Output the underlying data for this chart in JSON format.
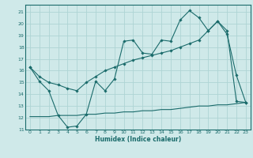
{
  "bg_color": "#cfe9e9",
  "grid_color": "#aed4d4",
  "line_color": "#1a6b6b",
  "xlabel": "Humidex (Indice chaleur)",
  "xlim": [
    -0.5,
    23.5
  ],
  "ylim": [
    11,
    21.6
  ],
  "yticks": [
    11,
    12,
    13,
    14,
    15,
    16,
    17,
    18,
    19,
    20,
    21
  ],
  "xticks": [
    0,
    1,
    2,
    3,
    4,
    5,
    6,
    7,
    8,
    9,
    10,
    11,
    12,
    13,
    14,
    15,
    16,
    17,
    18,
    19,
    20,
    21,
    22,
    23
  ],
  "line1_x": [
    0,
    1,
    2,
    3,
    4,
    5,
    6,
    7,
    8,
    9,
    10,
    11,
    12,
    13,
    14,
    15,
    16,
    17,
    18,
    19,
    20,
    21,
    22,
    23
  ],
  "line1_y": [
    16.3,
    15.1,
    14.3,
    12.2,
    11.2,
    11.3,
    12.3,
    15.1,
    14.3,
    15.3,
    18.5,
    18.6,
    17.5,
    17.4,
    18.6,
    18.5,
    20.3,
    21.1,
    20.5,
    19.4,
    20.2,
    19.1,
    15.6,
    13.3
  ],
  "line2_x": [
    0,
    1,
    2,
    3,
    4,
    5,
    6,
    7,
    8,
    9,
    10,
    11,
    12,
    13,
    14,
    15,
    16,
    17,
    18,
    19,
    20,
    21,
    22,
    23
  ],
  "line2_y": [
    16.3,
    15.5,
    15.0,
    14.8,
    14.5,
    14.3,
    15.0,
    15.5,
    16.0,
    16.3,
    16.6,
    16.9,
    17.1,
    17.3,
    17.5,
    17.7,
    18.0,
    18.3,
    18.6,
    19.4,
    20.2,
    19.4,
    13.4,
    13.3
  ],
  "line3_x": [
    0,
    1,
    2,
    3,
    4,
    5,
    6,
    7,
    8,
    9,
    10,
    11,
    12,
    13,
    14,
    15,
    16,
    17,
    18,
    19,
    20,
    21,
    22,
    23
  ],
  "line3_y": [
    12.1,
    12.1,
    12.1,
    12.2,
    12.2,
    12.2,
    12.3,
    12.3,
    12.4,
    12.4,
    12.5,
    12.5,
    12.6,
    12.6,
    12.7,
    12.7,
    12.8,
    12.9,
    13.0,
    13.0,
    13.1,
    13.1,
    13.2,
    13.3
  ]
}
